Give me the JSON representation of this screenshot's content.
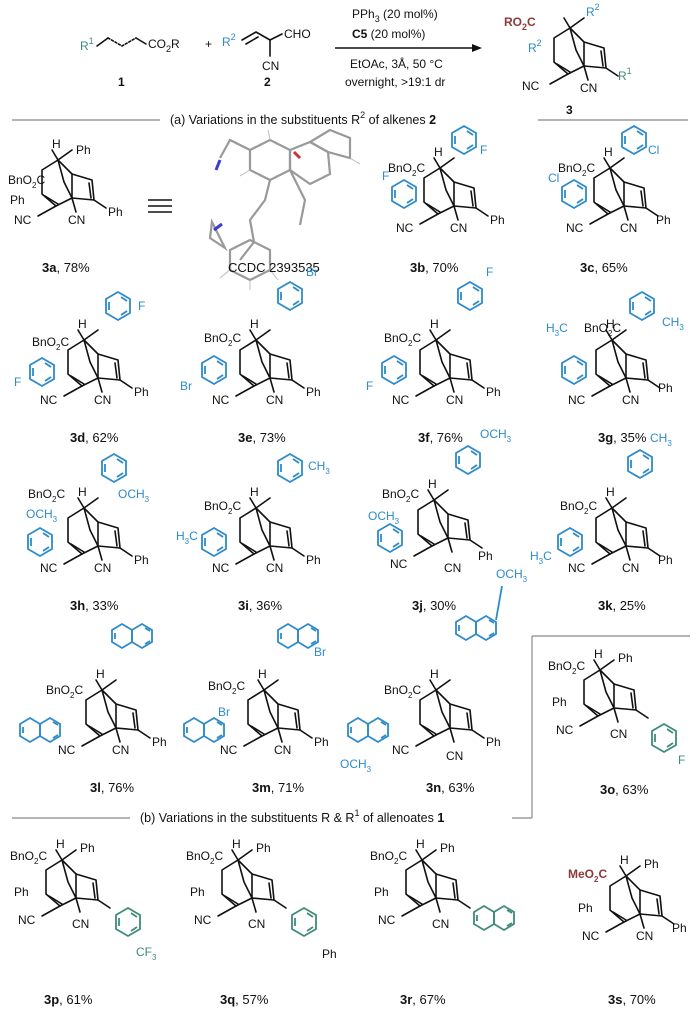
{
  "reaction": {
    "reagent1_label": "1",
    "reagent2_label": "2",
    "product_label": "3",
    "r1": "R",
    "r1_sup": "1",
    "co2r": "CO",
    "co2r_sub": "2",
    "co2r_tail": "R",
    "r2": "R",
    "r2_sup": "2",
    "cho": "CHO",
    "cn": "CN",
    "plus": "+",
    "cond1_a": "PPh",
    "cond1_sub": "3",
    "cond1_b": " (20 mol%)",
    "cond2_a": "C5",
    "cond2_b": " (20 mol%)",
    "cond3": "EtOAc, 3Å, 50 °C",
    "cond4": "overnight, >19:1 dr",
    "prod_ro2c": "RO",
    "prod_ro2c_sub": "2",
    "prod_ro2c_tail": "C"
  },
  "sections": {
    "a": "(a) Variations in the substituents R",
    "a_sup": "2",
    "a_tail": " of alkenes ",
    "a_bold": "2",
    "b": "(b) Variations in the substituents R & R",
    "b_sup": "1",
    "b_tail": " of allenoates ",
    "b_bold": "1"
  },
  "ccdc": "CCDC 2393535",
  "compounds": [
    {
      "id": "3a",
      "yield": ", 78%"
    },
    {
      "id": "3b",
      "yield": ", 70%"
    },
    {
      "id": "3c",
      "yield": ", 65%"
    },
    {
      "id": "3d",
      "yield": ", 62%"
    },
    {
      "id": "3e",
      "yield": ", 73%"
    },
    {
      "id": "3f",
      "yield": ", 76%"
    },
    {
      "id": "3g",
      "yield": ", 35%"
    },
    {
      "id": "3h",
      "yield": ", 33%"
    },
    {
      "id": "3i",
      "yield": ", 36%"
    },
    {
      "id": "3j",
      "yield": ", 30%"
    },
    {
      "id": "3k",
      "yield": ", 25%"
    },
    {
      "id": "3l",
      "yield": ", 76%"
    },
    {
      "id": "3m",
      "yield": ", 71%"
    },
    {
      "id": "3n",
      "yield": ", 63%"
    },
    {
      "id": "3o",
      "yield": ", 63%"
    },
    {
      "id": "3p",
      "yield": ", 61%"
    },
    {
      "id": "3q",
      "yield": ", 57%"
    },
    {
      "id": "3r",
      "yield": ", 67%"
    },
    {
      "id": "3s",
      "yield": ", 70%"
    }
  ],
  "labels": {
    "bno2c": "BnO",
    "o2c_sub": "2",
    "c": "C",
    "meo2c": "MeO",
    "ph": "Ph",
    "h": "H",
    "cn": "CN",
    "nc": "NC",
    "f": "F",
    "cl": "Cl",
    "br": "Br",
    "ch3": "CH",
    "h3c": "H",
    "sub3": "3",
    "och3": "OCH",
    "cf3": "CF"
  },
  "colors": {
    "aryl_blue": "#2e8bc9",
    "aryl_green": "#3f8b7c",
    "ester_brown": "#8b3a3a",
    "rule_gray": "#888888"
  }
}
